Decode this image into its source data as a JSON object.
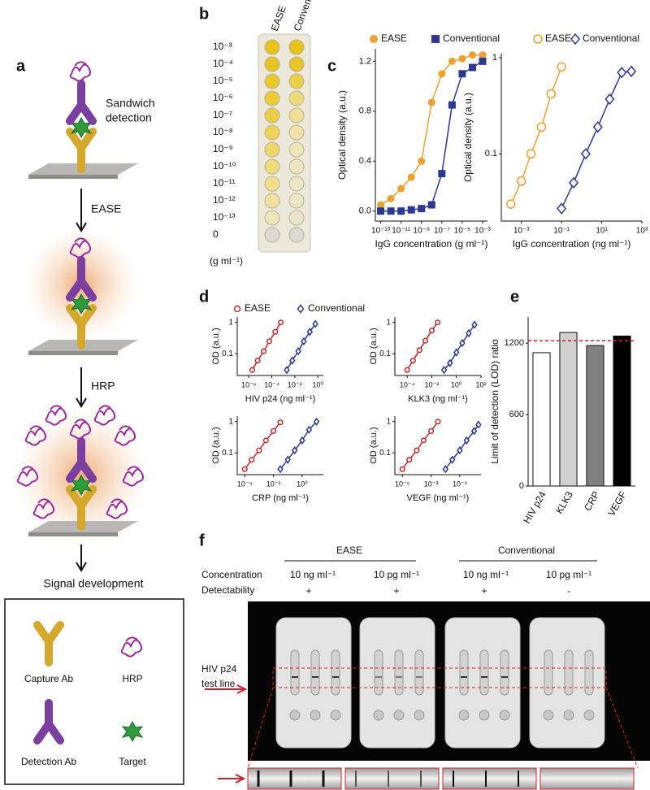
{
  "panel_labels": [
    "a",
    "b",
    "c",
    "d",
    "e",
    "f"
  ],
  "panel_a": {
    "title_lines": [
      "Sandwich",
      "detection"
    ],
    "steps": [
      "EASE",
      "HRP",
      "Signal development"
    ],
    "legend": [
      "Capture Ab",
      "HRP",
      "Detection Ab",
      "Target"
    ]
  },
  "panel_b": {
    "columns": [
      "EASE",
      "Conventional"
    ],
    "rows": [
      "10⁻³",
      "10⁻⁴",
      "10⁻⁵",
      "10⁻⁶",
      "10⁻⁷",
      "10⁻⁸",
      "10⁻⁹",
      "10⁻¹⁰",
      "10⁻¹¹",
      "10⁻¹²",
      "10⁻¹³",
      "0"
    ],
    "unit": "(g ml⁻¹)"
  },
  "panel_f": {
    "groups": [
      "EASE",
      "Conventional"
    ],
    "row_labels": [
      "Concentration",
      "Detectability"
    ],
    "concentrations": [
      "10 ng ml⁻¹",
      "10 pg ml⁻¹",
      "10 ng ml⁻¹",
      "10 pg ml⁻¹"
    ],
    "detectability": [
      "+",
      "+",
      "+",
      "-"
    ],
    "test_line_label": [
      "HIV p24",
      "test line"
    ]
  },
  "chart_data": [
    {
      "type": "line",
      "xlabel": "IgG concentration (g ml⁻¹)",
      "ylabel": "Optical density (a.u.)",
      "xscale": "log",
      "xlim": [
        3e-14,
        0.003
      ],
      "xticks": [
        {
          "value": 1e-13,
          "label": "10⁻¹³"
        },
        {
          "value": 1e-11,
          "label": "10⁻¹¹"
        },
        {
          "value": 1e-09,
          "label": "10⁻⁹"
        },
        {
          "value": 1e-07,
          "label": "10⁻⁷"
        },
        {
          "value": 1e-05,
          "label": "10⁻⁵"
        },
        {
          "value": 0.001,
          "label": "10⁻³"
        }
      ],
      "ylim": [
        -0.08,
        1.3
      ],
      "yticks": [
        {
          "value": 0,
          "label": "0.0"
        },
        0.4,
        0.8,
        1.2
      ],
      "series": [
        {
          "name": "EASE",
          "color": "#f0a030",
          "marker": "circle",
          "x": [
            1e-13,
            1e-12,
            1e-11,
            1e-10,
            1e-09,
            1e-08,
            1e-07,
            1e-06,
            1e-05,
            0.0001,
            0.001
          ],
          "values": [
            0.05,
            0.1,
            0.18,
            0.27,
            0.4,
            0.87,
            1.1,
            1.2,
            1.22,
            1.25,
            1.25
          ]
        },
        {
          "name": "Conventional",
          "color": "#2b3990",
          "marker": "square",
          "x": [
            1e-13,
            1e-12,
            1e-11,
            1e-10,
            1e-09,
            1e-08,
            1e-07,
            1e-06,
            1e-05,
            0.0001,
            0.001
          ],
          "values": [
            0,
            0,
            0,
            0.01,
            0.02,
            0.05,
            0.3,
            0.85,
            1.1,
            1.15,
            1.2
          ]
        }
      ]
    },
    {
      "type": "line",
      "xlabel": "IgG concentration (ng ml⁻¹)",
      "ylabel": "Optical density (a.u.)",
      "xscale": "log",
      "yscale": "log",
      "xlim": [
        0.0001,
        1000.0
      ],
      "xticks": [
        {
          "value": 0.001,
          "label": "10⁻³"
        },
        {
          "value": 0.1,
          "label": "10⁻¹"
        },
        {
          "value": 10,
          "label": "10¹"
        },
        {
          "value": 1000,
          "label": "10³"
        }
      ],
      "ylim": [
        0.02,
        1.1
      ],
      "yticks": [
        0.1,
        1
      ],
      "series": [
        {
          "name": "EASE",
          "color": "#f0a030",
          "marker": "open-circle",
          "x": [
            0.0003,
            0.001,
            0.003,
            0.01,
            0.03,
            0.1
          ],
          "values": [
            0.03,
            0.052,
            0.1,
            0.19,
            0.42,
            0.8
          ]
        },
        {
          "name": "Conventional",
          "color": "#2b3990",
          "marker": "open-diamond",
          "x": [
            0.1,
            0.4,
            1.6,
            6.4,
            25,
            100,
            300
          ],
          "values": [
            0.027,
            0.05,
            0.1,
            0.19,
            0.37,
            0.7,
            0.72
          ]
        }
      ]
    },
    {
      "type": "line",
      "xlabel": "HIV p24 (ng ml⁻¹)",
      "ylabel": "OD (a.u.)",
      "xscale": "log",
      "yscale": "log",
      "xlim": [
        1e-07,
        3
      ],
      "xticks": [
        {
          "value": 1e-06,
          "label": "10⁻⁶"
        },
        {
          "value": 0.0001,
          "label": "10⁻⁴"
        },
        {
          "value": 0.01,
          "label": "10⁻²"
        },
        {
          "value": 1,
          "label": "10⁰"
        }
      ],
      "ylim": [
        0.02,
        1.5
      ],
      "yticks": [
        0.1,
        1
      ],
      "series": [
        {
          "name": "EASE",
          "color": "#c0282d",
          "marker": "open-circle",
          "x": [
            2e-06,
            6e-06,
            2e-05,
            6e-05,
            0.0002,
            0.0006
          ],
          "values": [
            0.03,
            0.06,
            0.12,
            0.25,
            0.5,
            1.0
          ]
        },
        {
          "name": "Conventional",
          "color": "#2b3990",
          "marker": "open-diamond",
          "x": [
            0.002,
            0.006,
            0.02,
            0.06,
            0.2,
            0.6
          ],
          "values": [
            0.03,
            0.06,
            0.12,
            0.25,
            0.5,
            0.9
          ]
        }
      ]
    },
    {
      "type": "line",
      "xlabel": "KLK3 (ng ml⁻¹)",
      "ylabel": "OD (a.u.)",
      "xscale": "log",
      "yscale": "log",
      "xlim": [
        1e-05,
        100
      ],
      "xticks": [
        {
          "value": 0.0001,
          "label": "10⁻⁴"
        },
        {
          "value": 0.01,
          "label": "10⁻²"
        },
        {
          "value": 1,
          "label": "10⁰"
        },
        {
          "value": 100,
          "label": "10²"
        }
      ],
      "ylim": [
        0.02,
        1.5
      ],
      "yticks": [
        0.1,
        1
      ],
      "series": [
        {
          "color": "#c0282d",
          "marker": "open-circle",
          "x": [
            0.0001,
            0.0003,
            0.001,
            0.003,
            0.01,
            0.03
          ],
          "values": [
            0.03,
            0.06,
            0.13,
            0.26,
            0.55,
            1.0
          ]
        },
        {
          "color": "#2b3990",
          "marker": "open-diamond",
          "x": [
            0.1,
            0.3,
            1,
            3,
            10,
            30
          ],
          "values": [
            0.03,
            0.05,
            0.11,
            0.22,
            0.45,
            0.85
          ]
        }
      ]
    },
    {
      "type": "line",
      "xlabel": "CRP (ng ml⁻¹)",
      "ylabel": "OD (a.u.)",
      "xscale": "log",
      "yscale": "log",
      "xlim": [
        3e-05,
        30
      ],
      "xticks": [
        {
          "value": 0.0001,
          "label": "10⁻⁴"
        },
        {
          "value": 0.01,
          "label": "10⁻²"
        },
        {
          "value": 1,
          "label": "10⁰"
        }
      ],
      "ylim": [
        0.02,
        1.5
      ],
      "yticks": [
        0.1,
        1
      ],
      "series": [
        {
          "color": "#c0282d",
          "marker": "open-circle",
          "x": [
            0.0001,
            0.0003,
            0.001,
            0.003,
            0.01,
            0.03
          ],
          "values": [
            0.03,
            0.06,
            0.12,
            0.25,
            0.5,
            0.95
          ]
        },
        {
          "color": "#2b3990",
          "marker": "open-diamond",
          "x": [
            0.03,
            0.1,
            0.3,
            1,
            3,
            10
          ],
          "values": [
            0.03,
            0.06,
            0.12,
            0.25,
            0.55,
            1.0
          ]
        }
      ]
    },
    {
      "type": "line",
      "xlabel": "VEGF (ng ml⁻¹)",
      "ylabel": "OD (a.u.)",
      "xscale": "log",
      "yscale": "log",
      "xlim": [
        3e-06,
        3
      ],
      "xticks": [
        {
          "value": 1e-05,
          "label": "10⁻⁵"
        },
        {
          "value": 0.001,
          "label": "10⁻³"
        },
        {
          "value": 0.1,
          "label": "10⁻¹"
        }
      ],
      "ylim": [
        0.02,
        1.5
      ],
      "yticks": [
        0.1,
        1
      ],
      "series": [
        {
          "color": "#c0282d",
          "marker": "open-circle",
          "x": [
            1e-05,
            3e-05,
            0.0001,
            0.0003,
            0.001,
            0.003
          ],
          "values": [
            0.03,
            0.06,
            0.12,
            0.25,
            0.5,
            1.0
          ]
        },
        {
          "color": "#2b3990",
          "marker": "open-diamond",
          "x": [
            0.01,
            0.03,
            0.1,
            0.3,
            1,
            2
          ],
          "values": [
            0.03,
            0.06,
            0.12,
            0.25,
            0.5,
            0.8
          ]
        }
      ]
    },
    {
      "type": "bar",
      "ylabel": "Limit of detection (LOD) ratio",
      "categories": [
        "HIV p24",
        "KLK3",
        "CRP",
        "VEGF"
      ],
      "values": [
        1120,
        1290,
        1180,
        1260
      ],
      "colors": [
        "#ffffff",
        "#d0d0d0",
        "#808080",
        "#000000"
      ],
      "ylim": [
        0,
        1420
      ],
      "yticks": [
        0,
        600,
        1200
      ],
      "reference_line": 1220,
      "reference_color": "#d0202a"
    }
  ]
}
